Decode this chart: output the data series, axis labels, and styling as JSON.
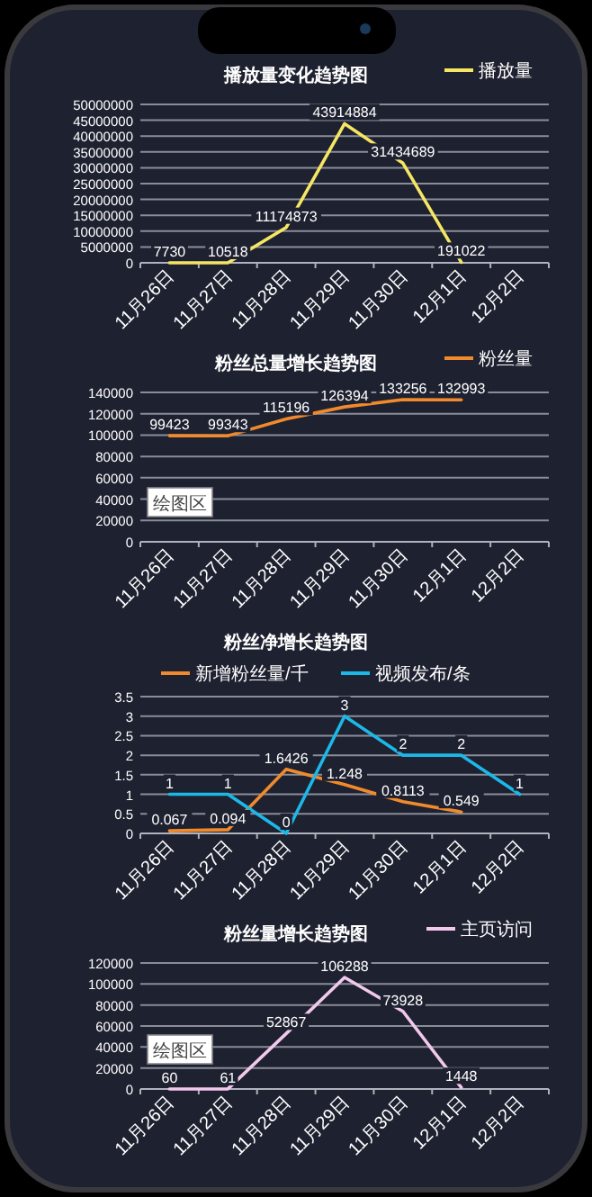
{
  "chart_data": [
    {
      "type": "line",
      "title": "播放量变化趋势图",
      "categories": [
        "11月26日",
        "11月27日",
        "11月28日",
        "11月29日",
        "11月30日",
        "12月1日",
        "12月2日"
      ],
      "series": [
        {
          "name": "播放量",
          "color": "#f5e663",
          "values": [
            7730,
            10518,
            11174873,
            43914884,
            31434689,
            191022,
            null
          ]
        }
      ],
      "ylim": [
        0,
        50000000
      ],
      "yticks": [
        0,
        5000000,
        10000000,
        15000000,
        20000000,
        25000000,
        30000000,
        35000000,
        40000000,
        45000000,
        50000000
      ],
      "grid": "y",
      "legend": "top right",
      "data_labels": true
    },
    {
      "type": "line",
      "title": "粉丝总量增长趋势图",
      "categories": [
        "11月26日",
        "11月27日",
        "11月28日",
        "11月29日",
        "11月30日",
        "12月1日",
        "12月2日"
      ],
      "series": [
        {
          "name": "粉丝量",
          "color": "#f08a2c",
          "values": [
            99423,
            99343,
            115196,
            126394,
            133256,
            132993,
            null
          ]
        }
      ],
      "ylim": [
        0,
        140000
      ],
      "yticks": [
        0,
        20000,
        40000,
        60000,
        80000,
        100000,
        120000,
        140000
      ],
      "grid": "y",
      "legend": "top right",
      "data_labels": true,
      "annotations": [
        "绘图区"
      ]
    },
    {
      "type": "line",
      "title": "粉丝净增长趋势图",
      "categories": [
        "11月26日",
        "11月27日",
        "11月28日",
        "11月29日",
        "11月30日",
        "12月1日",
        "12月2日"
      ],
      "series": [
        {
          "name": "新增粉丝量/千",
          "color": "#f08a2c",
          "values": [
            0.067,
            0.094,
            1.6426,
            1.248,
            0.8113,
            0.549,
            null
          ]
        },
        {
          "name": "视频发布/条",
          "color": "#1cb8e8",
          "values": [
            1,
            1,
            0,
            3,
            2,
            2,
            1
          ]
        }
      ],
      "ylim": [
        0,
        3.5
      ],
      "yticks": [
        0,
        0.5,
        1,
        1.5,
        2,
        2.5,
        3,
        3.5
      ],
      "grid": "y",
      "legend": "top",
      "data_labels": true
    },
    {
      "type": "line",
      "title": "粉丝量增长趋势图",
      "categories": [
        "11月26日",
        "11月27日",
        "11月28日",
        "11月29日",
        "11月30日",
        "12月1日",
        "12月2日"
      ],
      "series": [
        {
          "name": "主页访问",
          "color": "#f2c8ec",
          "values": [
            60,
            61,
            52867,
            106288,
            73928,
            1448,
            null
          ]
        }
      ],
      "ylim": [
        0,
        120000
      ],
      "yticks": [
        0,
        20000,
        40000,
        60000,
        80000,
        100000,
        120000
      ],
      "grid": "y",
      "legend": "top right",
      "data_labels": true,
      "annotations": [
        "绘图区"
      ]
    }
  ]
}
